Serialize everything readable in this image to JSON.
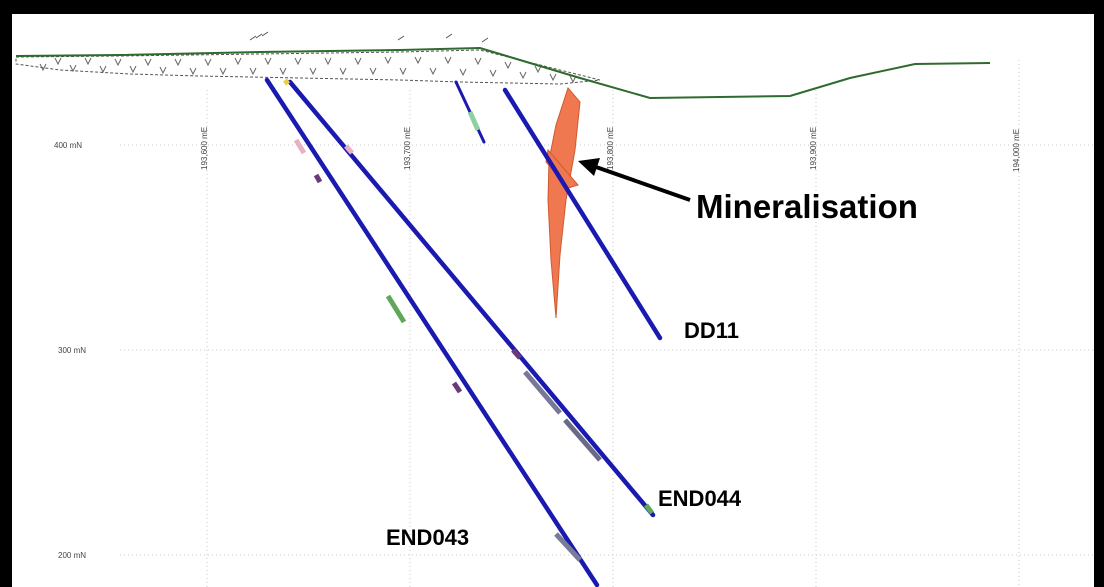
{
  "section": {
    "northing_labels": [
      "400 mN",
      "300 mN",
      "200 mN"
    ],
    "easting_labels": [
      "193,600 mE",
      "193,700 mE",
      "193,800 mE",
      "193,900 mE",
      "194,000 mE"
    ]
  },
  "annotation": {
    "text": "Mineralisation"
  },
  "drillholes": [
    {
      "name": "DD11"
    },
    {
      "name": "END044"
    },
    {
      "name": "END043"
    }
  ],
  "colors": {
    "hole": "#1a1ab0",
    "mineralisation": "#f07850",
    "topography": "#2e6b2e",
    "frame": "#000000"
  }
}
